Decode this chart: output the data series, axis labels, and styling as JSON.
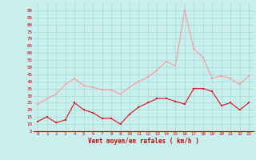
{
  "xlabel": "Vent moyen/en rafales ( km/h )",
  "background_color": "#c8eeee",
  "grid_color": "#aadddd",
  "x_values": [
    0,
    1,
    2,
    3,
    4,
    5,
    6,
    7,
    8,
    9,
    10,
    11,
    12,
    13,
    14,
    15,
    16,
    17,
    18,
    19,
    20,
    21,
    22,
    23
  ],
  "y_mean": [
    12,
    15,
    11,
    13,
    25,
    20,
    18,
    14,
    14,
    10,
    17,
    22,
    25,
    28,
    28,
    26,
    24,
    35,
    35,
    33,
    23,
    25,
    20,
    25
  ],
  "y_gust": [
    24,
    28,
    31,
    38,
    42,
    37,
    36,
    34,
    34,
    31,
    36,
    40,
    43,
    48,
    54,
    51,
    90,
    63,
    57,
    42,
    44,
    42,
    38,
    44
  ],
  "mean_color": "#dd1111",
  "gust_color": "#ff9999",
  "ylim_min": 5,
  "ylim_max": 95,
  "ytick_min": 5,
  "ytick_max": 90,
  "ytick_step": 5,
  "xticks": [
    0,
    1,
    2,
    3,
    4,
    5,
    6,
    7,
    8,
    9,
    10,
    11,
    12,
    13,
    14,
    15,
    16,
    17,
    18,
    19,
    20,
    21,
    22,
    23
  ],
  "line_width": 0.8,
  "marker_size": 1.8
}
